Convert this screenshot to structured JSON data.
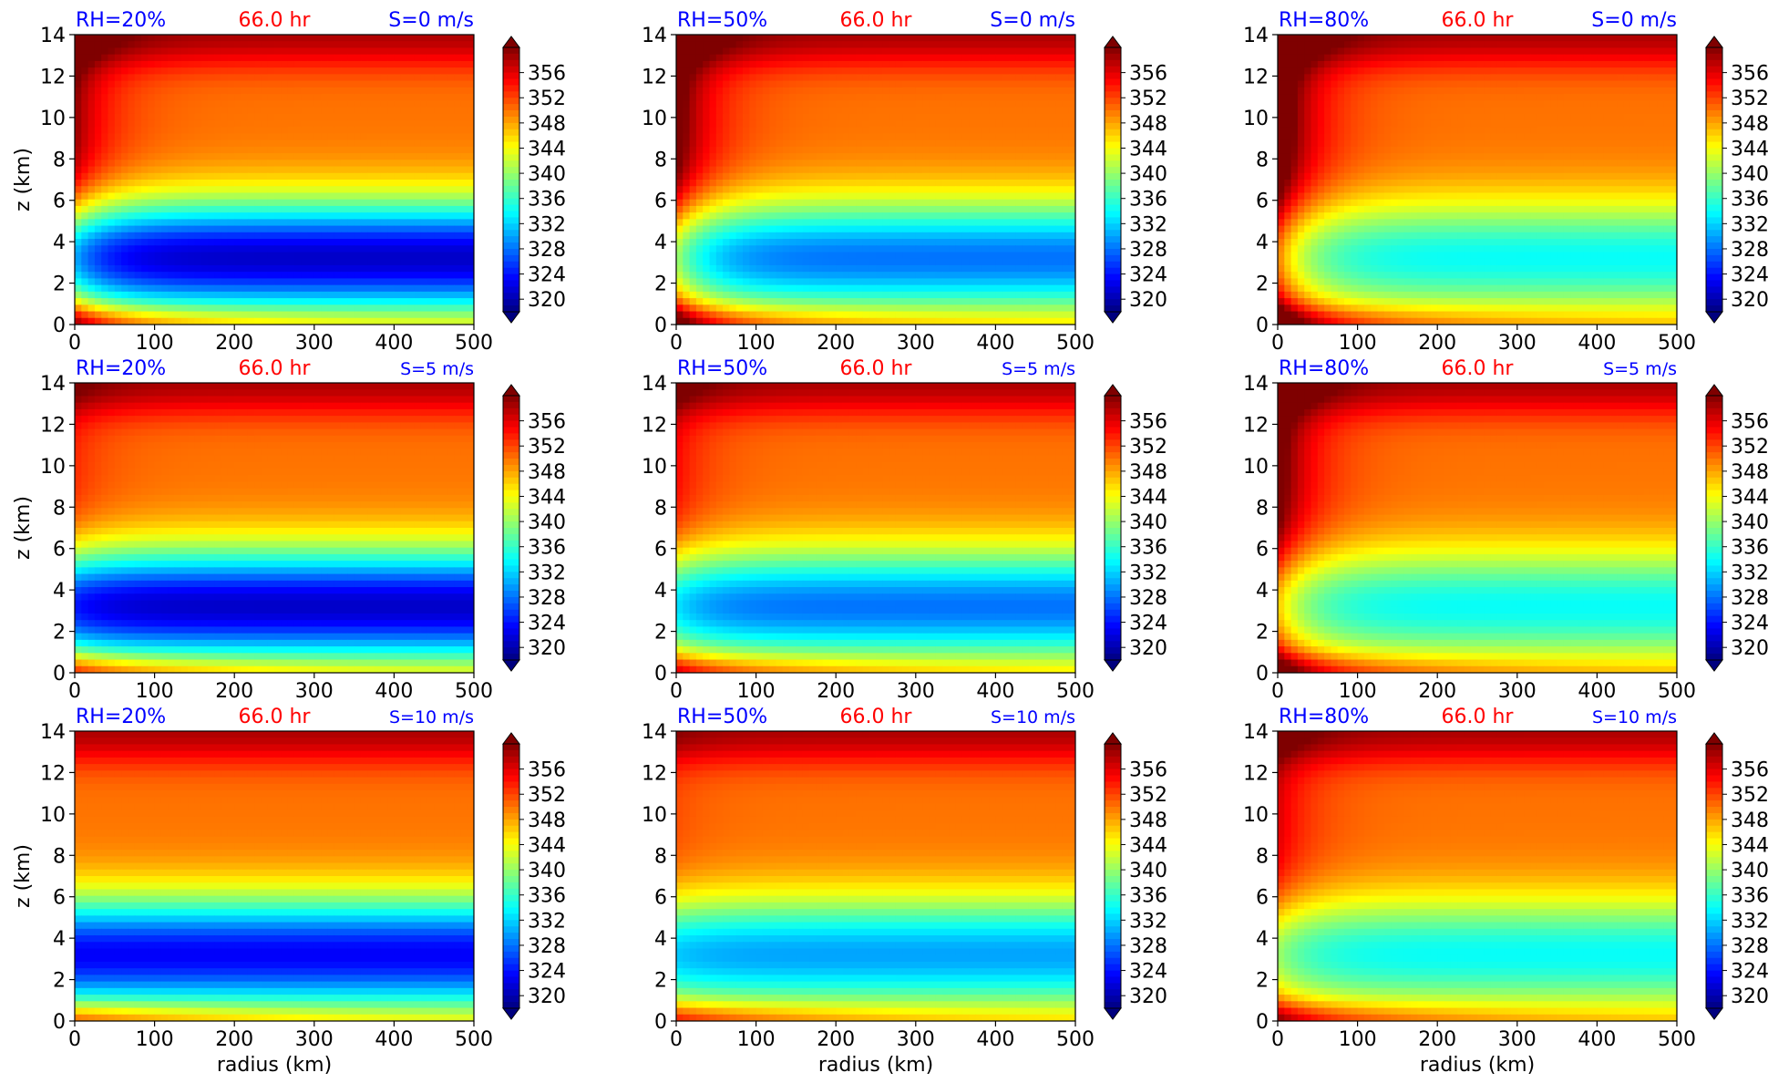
{
  "figure": {
    "row_labels": [
      "S=0 m/s",
      "S=5 m/s",
      "S=10 m/s"
    ],
    "col_labels": [
      "RH=20%",
      "RH=50%",
      "RH=80%"
    ],
    "time_label": "66.0 hr",
    "xlabel": "radius (km)",
    "ylabel": "z (km)",
    "colors": {
      "label_blue": "#0000ff",
      "label_red": "#ff0000",
      "colormap": [
        "#00007f",
        "#0000ff",
        "#007fff",
        "#00ffff",
        "#7fff7f",
        "#ffff00",
        "#ff7f00",
        "#ff0000",
        "#7f0000"
      ]
    }
  },
  "chart_data": [
    {
      "type": "heatmap",
      "title_left": "RH=20%",
      "title_center": "66.0 hr",
      "title_right": "S=0 m/s",
      "ylabel": "z (km)",
      "xlabel": "",
      "x_ticks": [
        "0",
        "100",
        "200",
        "300",
        "400",
        "500"
      ],
      "y_ticks": [
        "0",
        "2",
        "4",
        "6",
        "8",
        "10",
        "12",
        "14"
      ],
      "xlim": [
        0,
        500
      ],
      "ylim": [
        0,
        14
      ],
      "colorbar_ticks": [
        "320",
        "324",
        "328",
        "332",
        "336",
        "340",
        "344",
        "348",
        "352",
        "356"
      ],
      "colorbar_range": [
        318,
        360
      ],
      "field_min": 321,
      "warm_core": 0.6
    },
    {
      "type": "heatmap",
      "title_left": "RH=50%",
      "title_center": "66.0 hr",
      "title_right": "S=0 m/s",
      "ylabel": "",
      "xlabel": "",
      "x_ticks": [
        "0",
        "100",
        "200",
        "300",
        "400",
        "500"
      ],
      "y_ticks": [
        "0",
        "2",
        "4",
        "6",
        "8",
        "10",
        "12",
        "14"
      ],
      "xlim": [
        0,
        500
      ],
      "ylim": [
        0,
        14
      ],
      "colorbar_ticks": [
        "320",
        "324",
        "328",
        "332",
        "336",
        "340",
        "344",
        "348",
        "352",
        "356"
      ],
      "colorbar_range": [
        318,
        360
      ],
      "field_min": 328,
      "warm_core": 0.8
    },
    {
      "type": "heatmap",
      "title_left": "RH=80%",
      "title_center": "66.0 hr",
      "title_right": "S=0 m/s",
      "ylabel": "",
      "xlabel": "",
      "x_ticks": [
        "0",
        "100",
        "200",
        "300",
        "400",
        "500"
      ],
      "y_ticks": [
        "0",
        "2",
        "4",
        "6",
        "8",
        "10",
        "12",
        "14"
      ],
      "xlim": [
        0,
        500
      ],
      "ylim": [
        0,
        14
      ],
      "colorbar_ticks": [
        "320",
        "324",
        "328",
        "332",
        "336",
        "340",
        "344",
        "348",
        "352",
        "356"
      ],
      "colorbar_range": [
        318,
        360
      ],
      "field_min": 334,
      "warm_core": 1.0
    },
    {
      "type": "heatmap",
      "title_left": "RH=20%",
      "title_center": "66.0 hr",
      "title_right": "S=5 m/s",
      "ylabel": "z (km)",
      "xlabel": "",
      "x_ticks": [
        "0",
        "100",
        "200",
        "300",
        "400",
        "500"
      ],
      "y_ticks": [
        "0",
        "2",
        "4",
        "6",
        "8",
        "10",
        "12",
        "14"
      ],
      "xlim": [
        0,
        500
      ],
      "ylim": [
        0,
        14
      ],
      "colorbar_ticks": [
        "320",
        "324",
        "328",
        "332",
        "336",
        "340",
        "344",
        "348",
        "352",
        "356"
      ],
      "colorbar_range": [
        318,
        360
      ],
      "field_min": 321,
      "warm_core": 0.2
    },
    {
      "type": "heatmap",
      "title_left": "RH=50%",
      "title_center": "66.0 hr",
      "title_right": "S=5 m/s",
      "ylabel": "",
      "xlabel": "",
      "x_ticks": [
        "0",
        "100",
        "200",
        "300",
        "400",
        "500"
      ],
      "y_ticks": [
        "0",
        "2",
        "4",
        "6",
        "8",
        "10",
        "12",
        "14"
      ],
      "xlim": [
        0,
        500
      ],
      "ylim": [
        0,
        14
      ],
      "colorbar_ticks": [
        "320",
        "324",
        "328",
        "332",
        "336",
        "340",
        "344",
        "348",
        "352",
        "356"
      ],
      "colorbar_range": [
        318,
        360
      ],
      "field_min": 328,
      "warm_core": 0.3
    },
    {
      "type": "heatmap",
      "title_left": "RH=80%",
      "title_center": "66.0 hr",
      "title_right": "S=5 m/s",
      "ylabel": "",
      "xlabel": "",
      "x_ticks": [
        "0",
        "100",
        "200",
        "300",
        "400",
        "500"
      ],
      "y_ticks": [
        "0",
        "2",
        "4",
        "6",
        "8",
        "10",
        "12",
        "14"
      ],
      "xlim": [
        0,
        500
      ],
      "ylim": [
        0,
        14
      ],
      "colorbar_ticks": [
        "320",
        "324",
        "328",
        "332",
        "336",
        "340",
        "344",
        "348",
        "352",
        "356"
      ],
      "colorbar_range": [
        318,
        360
      ],
      "field_min": 334,
      "warm_core": 0.8
    },
    {
      "type": "heatmap",
      "title_left": "RH=20%",
      "title_center": "66.0 hr",
      "title_right": "S=10 m/s",
      "ylabel": "z (km)",
      "xlabel": "radius (km)",
      "x_ticks": [
        "0",
        "100",
        "200",
        "300",
        "400",
        "500"
      ],
      "y_ticks": [
        "0",
        "2",
        "4",
        "6",
        "8",
        "10",
        "12",
        "14"
      ],
      "xlim": [
        0,
        500
      ],
      "ylim": [
        0,
        14
      ],
      "colorbar_ticks": [
        "320",
        "324",
        "328",
        "332",
        "336",
        "340",
        "344",
        "348",
        "352",
        "356"
      ],
      "colorbar_range": [
        318,
        360
      ],
      "field_min": 323,
      "warm_core": 0.0
    },
    {
      "type": "heatmap",
      "title_left": "RH=50%",
      "title_center": "66.0 hr",
      "title_right": "S=10 m/s",
      "ylabel": "",
      "xlabel": "radius (km)",
      "x_ticks": [
        "0",
        "100",
        "200",
        "300",
        "400",
        "500"
      ],
      "y_ticks": [
        "0",
        "2",
        "4",
        "6",
        "8",
        "10",
        "12",
        "14"
      ],
      "xlim": [
        0,
        500
      ],
      "ylim": [
        0,
        14
      ],
      "colorbar_ticks": [
        "320",
        "324",
        "328",
        "332",
        "336",
        "340",
        "344",
        "348",
        "352",
        "356"
      ],
      "colorbar_range": [
        318,
        360
      ],
      "field_min": 330,
      "warm_core": 0.1
    },
    {
      "type": "heatmap",
      "title_left": "RH=80%",
      "title_center": "66.0 hr",
      "title_right": "S=10 m/s",
      "ylabel": "",
      "xlabel": "radius (km)",
      "x_ticks": [
        "0",
        "100",
        "200",
        "300",
        "400",
        "500"
      ],
      "y_ticks": [
        "0",
        "2",
        "4",
        "6",
        "8",
        "10",
        "12",
        "14"
      ],
      "xlim": [
        0,
        500
      ],
      "ylim": [
        0,
        14
      ],
      "colorbar_ticks": [
        "320",
        "324",
        "328",
        "332",
        "336",
        "340",
        "344",
        "348",
        "352",
        "356"
      ],
      "colorbar_range": [
        318,
        360
      ],
      "field_min": 334,
      "warm_core": 0.4
    }
  ]
}
